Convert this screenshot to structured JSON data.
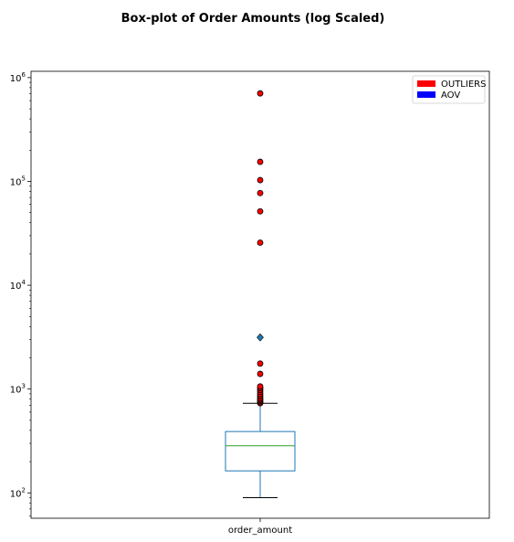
{
  "chart_data": {
    "type": "boxplot",
    "title": "Box-plot of Order Amounts (log Scaled)",
    "xlabel": "",
    "ylabel": "",
    "y_scale": "log",
    "ylim": [
      57,
      1150000
    ],
    "y_ticks": [
      {
        "value": 100,
        "base": "10",
        "exp": "2"
      },
      {
        "value": 1000,
        "base": "10",
        "exp": "3"
      },
      {
        "value": 10000,
        "base": "10",
        "exp": "4"
      },
      {
        "value": 100000,
        "base": "10",
        "exp": "5"
      },
      {
        "value": 1000000,
        "base": "10",
        "exp": "6"
      }
    ],
    "categories": [
      "order_amount"
    ],
    "box": {
      "whisker_low": 90,
      "q1": 163,
      "median": 284,
      "q3": 390,
      "whisker_high": 730
    },
    "outliers": [
      730,
      750,
      770,
      790,
      810,
      840,
      870,
      900,
      940,
      980,
      1020,
      1060,
      1400,
      1760,
      25725,
      51450,
      77175,
      102900,
      154350,
      704000
    ],
    "aov": 3145,
    "legend": {
      "position": "top-right",
      "entries": [
        {
          "label": "OUTLIERS",
          "color": "#ff0000"
        },
        {
          "label": "AOV",
          "color": "#0000ff"
        }
      ]
    },
    "grid": false
  }
}
